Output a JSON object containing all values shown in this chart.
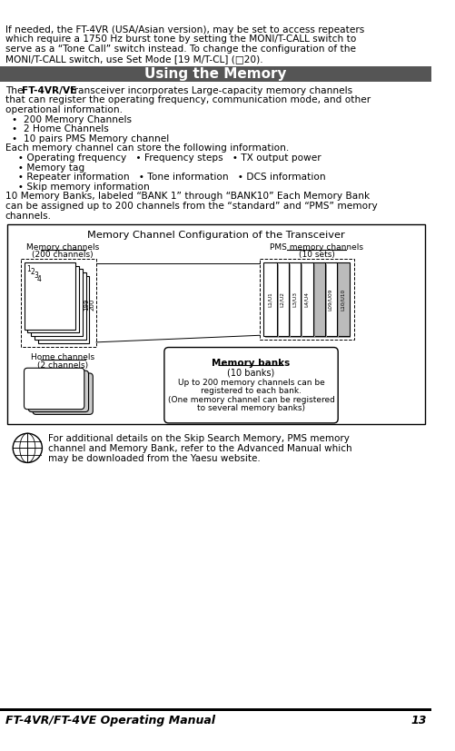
{
  "bg_color": "#ffffff",
  "header_bg": "#555555",
  "header_text": "Using the Memory",
  "header_text_color": "#ffffff",
  "top_lines": [
    "If needed, the FT-4VR (USA/Asian version), may be set to access repeaters",
    "which require a 1750 Hz burst tone by setting the MONI/T-CALL switch to",
    "serve as a “Tone Call” switch instead. To change the configuration of the",
    "MONI/T-CALL switch, use Set Mode [19 M/T-CL] (□20)."
  ],
  "body_lines": [
    {
      "text": "transceiver incorporates Large-capacity memory channels",
      "prefix": "The ",
      "bold_prefix": "FT-4VR/VE",
      "indent": 6
    },
    {
      "text": "that can register the operating frequency, communication mode, and other",
      "indent": 6
    },
    {
      "text": "operational information.",
      "indent": 6
    },
    {
      "text": "•  200 Memory Channels",
      "indent": 14
    },
    {
      "text": "•  2 Home Channels",
      "indent": 14
    },
    {
      "text": "•  10 pairs PMS Memory channel",
      "indent": 14
    },
    {
      "text": "Each memory channel can store the following information.",
      "indent": 6
    },
    {
      "text": "  • Operating frequency   • Frequency steps   • TX output power",
      "indent": 14
    },
    {
      "text": "  • Memory tag",
      "indent": 14
    },
    {
      "text": "  • Repeater information   • Tone information   • DCS information",
      "indent": 14
    },
    {
      "text": "  • Skip memory information",
      "indent": 14
    },
    {
      "text": "10 Memory Banks, labeled “BANK 1” through “BANK10” Each Memory Bank",
      "indent": 6
    },
    {
      "text": "can be assigned up to 200 channels from the “standard” and “PMS” memory",
      "indent": 6
    },
    {
      "text": "channels.",
      "indent": 6
    }
  ],
  "diagram_title": "Memory Channel Configuration of the Transceiver",
  "mc_label1": "Memory channels",
  "mc_label2": "(200 channels)",
  "pms_label1": "PMS memory channels",
  "pms_label2": "(10 sets)",
  "home_label1": "Home channels",
  "home_label2": "(2 channels)",
  "mb_title": "Memory banks",
  "mb_line1": "(10 banks)",
  "mb_line2": "Up to 200 memory channels can be",
  "mb_line3": "registered to each bank.",
  "mb_line4": "(One memory channel can be registered",
  "mb_line5": "to several memory banks)",
  "note_lines": [
    "For additional details on the Skip Search Memory, PMS memory",
    "channel and Memory Bank, refer to the Advanced Manual which",
    "may be downloaded from the Yaesu website."
  ],
  "page_left": "FT-4VR/FT-4VE Operating Manual",
  "page_right": "13",
  "pms_labels": [
    "L1/U1",
    "L2/U2",
    "L3/U3",
    "L4/U4",
    "",
    "L09/U09",
    "L10/U10"
  ],
  "pms_colors": [
    "#ffffff",
    "#ffffff",
    "#ffffff",
    "#ffffff",
    "#bbbbbb",
    "#ffffff",
    "#bbbbbb"
  ]
}
